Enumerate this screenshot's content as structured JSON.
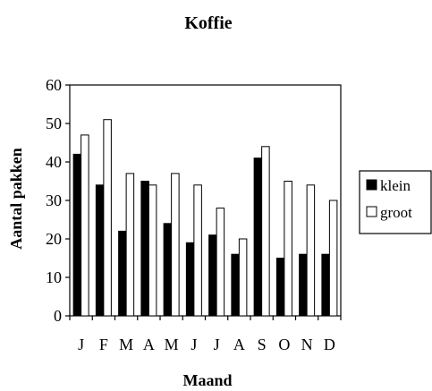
{
  "chart_data": {
    "type": "bar",
    "title": "Koffie",
    "xlabel": "Maand",
    "ylabel": "Aantal pakken",
    "categories": [
      "J",
      "F",
      "M",
      "A",
      "M",
      "J",
      "J",
      "A",
      "S",
      "O",
      "N",
      "D"
    ],
    "series": [
      {
        "name": "klein",
        "values": [
          42,
          34,
          22,
          35,
          24,
          19,
          21,
          16,
          41,
          15,
          16,
          16
        ],
        "color": "#000000"
      },
      {
        "name": "groot",
        "values": [
          47,
          51,
          37,
          34,
          37,
          34,
          28,
          20,
          44,
          35,
          34,
          30
        ],
        "color": "#ffffff"
      }
    ],
    "ylim": [
      0,
      60
    ],
    "yticks": [
      "0",
      "10",
      "20",
      "30",
      "40",
      "50",
      "60"
    ],
    "grid": false,
    "legend": "right"
  }
}
